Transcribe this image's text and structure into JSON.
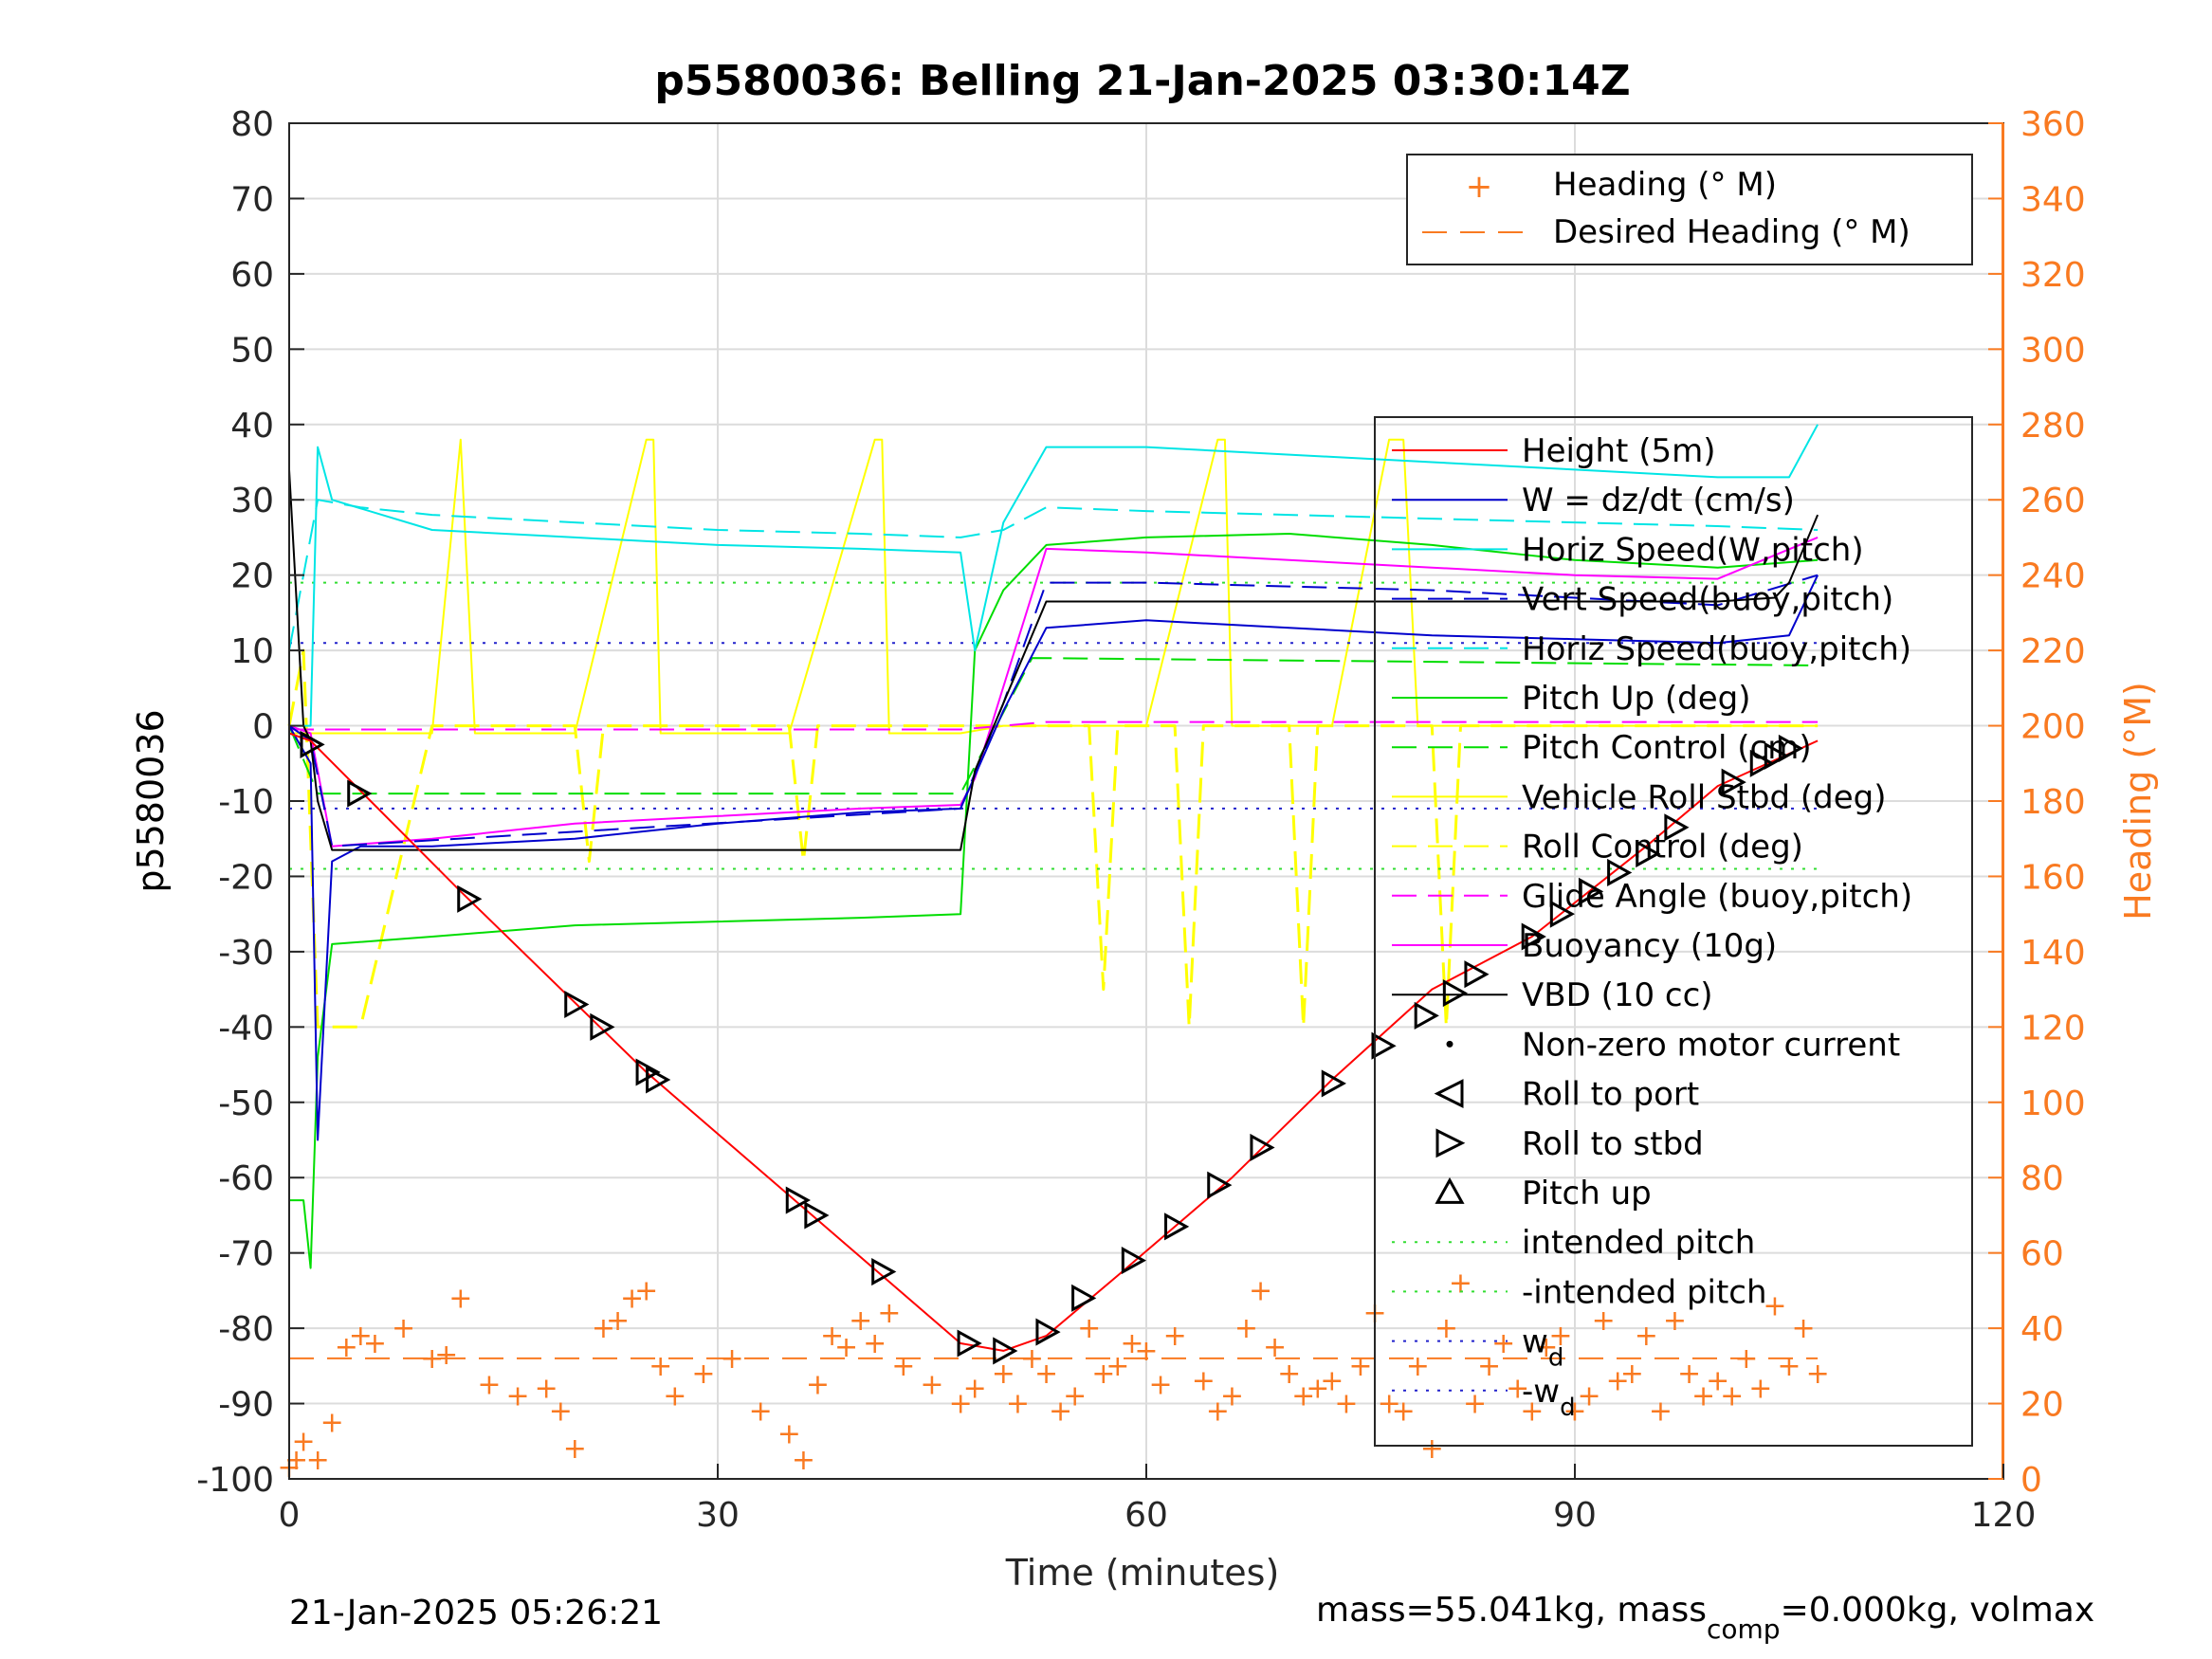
{
  "chart_data": {
    "type": "line",
    "title": "p5580036: Belling 21-Jan-2025 03:30:14Z",
    "xlabel": "Time (minutes)",
    "ylabel": "p5580036",
    "y2label": "Heading (°M)",
    "xlim": [
      0,
      120
    ],
    "ylim": [
      -100,
      80
    ],
    "y2lim": [
      0,
      360
    ],
    "xticks": [
      "0",
      "30",
      "60",
      "90",
      "120"
    ],
    "yticks": [
      "80",
      "70",
      "60",
      "50",
      "40",
      "30",
      "20",
      "10",
      "0",
      "-10",
      "-20",
      "-30",
      "-40",
      "-50",
      "-60",
      "-70",
      "-80",
      "-90",
      "-100"
    ],
    "y2ticks": [
      "360",
      "340",
      "320",
      "300",
      "280",
      "260",
      "240",
      "220",
      "200",
      "180",
      "160",
      "140",
      "120",
      "100",
      "80",
      "60",
      "40",
      "20",
      "0"
    ],
    "grid": true,
    "colors": {
      "height": "#ff0000",
      "w": "#0000cc",
      "horiz_w": "#00e5e5",
      "pitch_up": "#00dd00",
      "pitch_control": "#00dd00",
      "roll": "#ffff00",
      "glide": "#ff00ff",
      "buoyancy": "#ff00ff",
      "vbd": "#000000",
      "heading": "#f97a21",
      "intended_pitch": "#33dd33",
      "wd": "#2222cc"
    },
    "legend_top": {
      "placement": "top-right",
      "entries": [
        "Heading (° M)",
        "Desired Heading (° M)"
      ]
    },
    "legend_main": {
      "placement": "right",
      "entries": [
        "Height (5m)",
        "W = dz/dt (cm/s)",
        "Horiz Speed(W,pitch)",
        "Vert Speed(buoy,pitch)",
        "Horiz Speed(buoy,pitch)",
        "Pitch Up (deg)",
        "Pitch Control (cm)",
        "Vehicle Roll Stbd (deg)",
        "Roll Control (deg)",
        "Glide Angle (buoy,pitch)",
        "Buoyancy (10g)",
        "VBD (10 cc)",
        "Non-zero motor current",
        "Roll to port",
        "Roll to stbd",
        "Pitch up",
        "intended pitch",
        "-intended pitch",
        "w",
        "-w"
      ],
      "w_subscript": "d"
    },
    "series": [
      {
        "name": "Height (5m)",
        "x": [
          0,
          1.5,
          12,
          25,
          36,
          47,
          50,
          53,
          58,
          66,
          73,
          80,
          87,
          95,
          100,
          107
        ],
        "y": [
          -1,
          -2,
          -22,
          -46,
          -64,
          -82,
          -83,
          -81,
          -73,
          -60,
          -47,
          -35,
          -28,
          -16,
          -8,
          -2
        ]
      },
      {
        "name": "W = dz/dt (cm/s)",
        "x": [
          0,
          1.5,
          2,
          3,
          5,
          10,
          20,
          30,
          40,
          47,
          50,
          53,
          60,
          70,
          80,
          90,
          100,
          105,
          107
        ],
        "y": [
          0,
          -5,
          -55,
          -18,
          -16,
          -16,
          -15,
          -13,
          -11.5,
          -11,
          2,
          13,
          14,
          13,
          12,
          11.5,
          11,
          12,
          20
        ]
      },
      {
        "name": "Horiz Speed(W,pitch)",
        "x": [
          0,
          1.5,
          2,
          3,
          10,
          20,
          30,
          40,
          47,
          48,
          50,
          53,
          60,
          70,
          80,
          90,
          100,
          105,
          107
        ],
        "y": [
          0,
          0,
          37,
          30,
          26,
          25,
          24,
          23.5,
          23,
          10,
          27,
          37,
          37,
          36,
          35,
          34,
          33,
          33,
          40
        ]
      },
      {
        "name": "Vert Speed(buoy,pitch)",
        "x": [
          0,
          1.5,
          3,
          47,
          50,
          53,
          60,
          70,
          80,
          90,
          100,
          107
        ],
        "y": [
          0,
          -2,
          -16,
          -11,
          3,
          19,
          19,
          18.5,
          18,
          17,
          16,
          20
        ]
      },
      {
        "name": "Horiz Speed(buoy,pitch)",
        "x": [
          0,
          2,
          5,
          10,
          20,
          30,
          40,
          47,
          50,
          53,
          60,
          70,
          80,
          90,
          100,
          107
        ],
        "y": [
          10,
          30,
          29,
          28,
          27,
          26,
          25.5,
          25,
          26,
          29,
          28.5,
          28,
          27.5,
          27,
          26.5,
          26
        ]
      },
      {
        "name": "Pitch Up (deg)",
        "x": [
          0,
          1,
          1.5,
          2,
          3,
          10,
          20,
          30,
          40,
          47,
          48,
          50,
          53,
          60,
          70,
          80,
          90,
          100,
          107
        ],
        "y": [
          -63,
          -63,
          -72,
          -44,
          -29,
          -28,
          -26.5,
          -26,
          -25.5,
          -25,
          10,
          18,
          24,
          25,
          25.5,
          24,
          22,
          21,
          22
        ]
      },
      {
        "name": "Pitch Control (cm)",
        "x": [
          0,
          2,
          5,
          47,
          52,
          107
        ],
        "y": [
          0,
          -9,
          -9,
          -9,
          9,
          8
        ]
      },
      {
        "name": "Vehicle Roll Stbd (deg)",
        "x": [
          0,
          10,
          12,
          13,
          20,
          25,
          25.5,
          26,
          35,
          41,
          41.5,
          42,
          47,
          50,
          52,
          53,
          60,
          65,
          65.5,
          66,
          73,
          77,
          78,
          79,
          87,
          90,
          100,
          107
        ],
        "y": [
          -1,
          -1,
          38,
          -1,
          -1,
          38,
          38,
          -1,
          -1,
          38,
          38,
          -1,
          -1,
          0,
          0,
          0,
          0,
          38,
          38,
          0,
          0,
          38,
          38,
          0,
          0,
          0,
          0,
          0
        ]
      },
      {
        "name": "Roll Control (deg)",
        "x": [
          0,
          1,
          2,
          5,
          10,
          20,
          21,
          22,
          35,
          36,
          37,
          47,
          50,
          53,
          56,
          57,
          58,
          62,
          63,
          64,
          70,
          71,
          72,
          80,
          81,
          82,
          90,
          100,
          107
        ],
        "y": [
          0,
          10,
          -40,
          -40,
          0,
          0,
          -18,
          0,
          0,
          -18,
          0,
          0,
          0,
          0,
          0,
          -35,
          0,
          0,
          -40,
          0,
          0,
          -40,
          0,
          0,
          -40,
          0,
          0,
          0,
          0
        ]
      },
      {
        "name": "Glide Angle (buoy,pitch)",
        "x": [
          0,
          47,
          53,
          107
        ],
        "y": [
          -0.5,
          -0.5,
          0.5,
          0.5
        ]
      },
      {
        "name": "Buoyancy (10g)",
        "x": [
          0,
          1.5,
          3,
          10,
          20,
          30,
          40,
          47,
          48,
          53,
          60,
          70,
          80,
          90,
          100,
          107
        ],
        "y": [
          0,
          -1,
          -16,
          -15,
          -13,
          -12,
          -11,
          -10.5,
          -7,
          23.5,
          23,
          22,
          21,
          20,
          19.5,
          25
        ]
      },
      {
        "name": "VBD (10 cc)",
        "x": [
          0,
          1,
          1.5,
          2,
          3,
          10,
          20,
          30,
          40,
          47,
          48,
          53,
          60,
          70,
          80,
          90,
          100,
          104,
          105,
          107
        ],
        "y": [
          34,
          0,
          -2,
          -10,
          -16.5,
          -16.5,
          -16.5,
          -16.5,
          -16.5,
          -16.5,
          -6,
          16.5,
          16.5,
          16.5,
          16.5,
          16.5,
          16.5,
          17,
          19,
          28
        ]
      },
      {
        "name": "intended pitch",
        "x": [
          0,
          107
        ],
        "y": [
          19,
          19
        ]
      },
      {
        "name": "-intended pitch",
        "x": [
          0,
          107
        ],
        "y": [
          -19,
          -19
        ]
      },
      {
        "name": "w_d",
        "x": [
          0,
          107
        ],
        "y": [
          11,
          11
        ]
      },
      {
        "name": "-w_d",
        "x": [
          0,
          107
        ],
        "y": [
          -11,
          -11
        ]
      },
      {
        "name": "Heading (° M)",
        "axis": "right",
        "x": [
          0,
          0.5,
          1,
          2,
          3,
          4,
          5,
          6,
          8,
          10,
          11,
          12,
          14,
          16,
          18,
          19,
          20,
          22,
          23,
          24,
          25,
          26,
          27,
          29,
          31,
          33,
          35,
          36,
          37,
          38,
          39,
          40,
          41,
          42,
          43,
          45,
          47,
          48,
          50,
          51,
          52,
          53,
          54,
          55,
          56,
          57,
          58,
          59,
          60,
          61,
          62,
          64,
          65,
          66,
          67,
          68,
          69,
          70,
          71,
          72,
          73,
          74,
          75,
          76,
          77,
          78,
          79,
          80,
          81,
          82,
          83,
          84,
          85,
          86,
          87,
          88,
          89,
          90,
          91,
          92,
          93,
          94,
          95,
          96,
          97,
          98,
          99,
          100,
          101,
          102,
          103,
          104,
          105,
          106,
          107
        ],
        "y": [
          3,
          5,
          10,
          5,
          15,
          35,
          38,
          36,
          40,
          32,
          33,
          48,
          25,
          22,
          24,
          18,
          8,
          40,
          42,
          48,
          50,
          30,
          22,
          28,
          32,
          18,
          12,
          5,
          25,
          38,
          35,
          42,
          36,
          44,
          30,
          25,
          20,
          24,
          28,
          20,
          32,
          28,
          18,
          22,
          40,
          28,
          30,
          36,
          34,
          25,
          38,
          26,
          18,
          22,
          40,
          50,
          35,
          28,
          22,
          24,
          26,
          20,
          30,
          44,
          20,
          18,
          30,
          8,
          40,
          52,
          20,
          30,
          36,
          24,
          18,
          35,
          38,
          18,
          22,
          42,
          26,
          28,
          38,
          18,
          42,
          28,
          22,
          26,
          22,
          32,
          24,
          46,
          30,
          40,
          28
        ]
      },
      {
        "name": "Desired Heading (° M)",
        "axis": "right",
        "x": [
          0,
          107
        ],
        "y": [
          32,
          32
        ]
      }
    ],
    "markers": {
      "height_points": {
        "x": [
          1.5,
          4.8,
          12.5,
          20,
          21.8,
          25,
          25.7,
          35.5,
          36.8,
          41.5,
          47.5,
          50,
          53,
          55.5,
          59,
          62,
          65,
          68,
          73,
          76.5,
          79.5,
          81.5,
          83,
          87,
          89,
          91,
          93,
          95,
          97,
          101,
          103,
          104,
          105
        ],
        "y": [
          -2.5,
          -9,
          -23,
          -37,
          -40,
          -46,
          -47,
          -63,
          -65,
          -72.5,
          -82,
          -83,
          -80.5,
          -76,
          -71,
          -66.5,
          -61,
          -56,
          -47.5,
          -42.5,
          -38.5,
          -35.5,
          -33,
          -28,
          -25,
          -22,
          -19.5,
          -17,
          -13.5,
          -7.5,
          -5,
          -4,
          -3
        ]
      }
    },
    "footer_left": "21-Jan-2025 05:26:21",
    "footer_right": {
      "pre": "mass=55.041kg, mass",
      "sub": "comp",
      "post": "=0.000kg, volmax"
    }
  }
}
